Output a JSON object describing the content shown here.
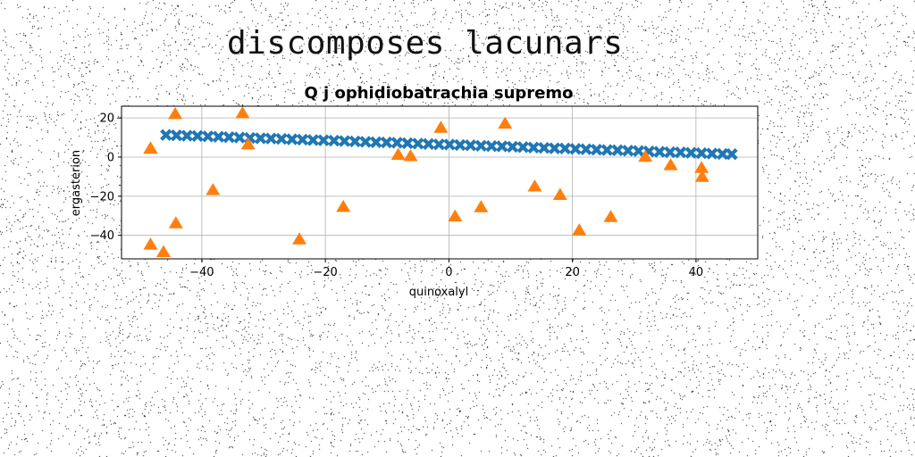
{
  "page": {
    "heading": "discomposes lacunars"
  },
  "chart_data": {
    "type": "scatter",
    "title": "Q j ophidiobatrachia supremo",
    "xlabel": "quinoxalyl",
    "ylabel": "ergasterion",
    "xlim": [
      -53,
      50
    ],
    "ylim": [
      -52,
      26
    ],
    "x_ticks": [
      -40,
      -20,
      0,
      20,
      40
    ],
    "x_tick_labels": [
      "−40",
      "−20",
      "0",
      "20",
      "40"
    ],
    "y_ticks": [
      -40,
      -20,
      0,
      20
    ],
    "y_tick_labels": [
      "−40",
      "−20",
      "0",
      "20"
    ],
    "grid": true,
    "series": [
      {
        "marker": "x",
        "color": "#1f77b4",
        "x": [
          -45.8,
          -44.1,
          -42.4,
          -40.7,
          -39.0,
          -37.3,
          -35.6,
          -33.9,
          -32.2,
          -30.5,
          -28.8,
          -27.1,
          -25.4,
          -23.7,
          -22.0,
          -20.3,
          -18.6,
          -16.9,
          -15.2,
          -13.5,
          -11.8,
          -10.1,
          -8.4,
          -6.7,
          -5.0,
          -3.3,
          -1.6,
          0.1,
          1.8,
          3.5,
          5.2,
          6.9,
          8.6,
          10.3,
          12.0,
          13.7,
          15.4,
          17.1,
          18.8,
          20.5,
          22.2,
          23.9,
          25.6,
          27.3,
          29.0,
          30.7,
          32.4,
          34.1,
          35.8,
          37.5,
          39.2,
          40.9,
          42.6,
          44.3,
          45.8
        ],
        "y": [
          11.3,
          11.1,
          10.9,
          10.8,
          10.6,
          10.4,
          10.2,
          10.0,
          9.8,
          9.6,
          9.5,
          9.3,
          9.1,
          8.9,
          8.7,
          8.6,
          8.4,
          8.2,
          8.0,
          7.8,
          7.6,
          7.5,
          7.3,
          7.1,
          6.9,
          6.7,
          6.5,
          6.4,
          6.2,
          6.0,
          5.8,
          5.6,
          5.5,
          5.3,
          5.1,
          4.9,
          4.7,
          4.5,
          4.4,
          4.2,
          4.0,
          3.8,
          3.6,
          3.5,
          3.3,
          3.1,
          2.9,
          2.7,
          2.5,
          2.4,
          2.2,
          2.0,
          1.8,
          1.6,
          1.5
        ]
      },
      {
        "marker": "^",
        "color": "#ff7f0e",
        "x": [
          -48.3,
          -44.3,
          -33.4,
          -32.5,
          -1.3,
          9.1,
          -48.3,
          -8.2,
          -6.2,
          31.8,
          35.9,
          40.9,
          41.0,
          -38.2,
          13.9,
          18.0,
          -17.1,
          5.2,
          1.0,
          26.2,
          -44.2,
          21.1,
          -48.3,
          -24.2,
          -46.2
        ],
        "y": [
          4.2,
          21.7,
          22.1,
          6.2,
          14.7,
          16.8,
          4.0,
          0.9,
          0.2,
          -0.1,
          -4.4,
          -5.8,
          -10.4,
          -17.1,
          -15.3,
          -19.6,
          -25.7,
          -25.9,
          -30.6,
          -30.9,
          -34.1,
          -37.7,
          -45.0,
          -42.3,
          -48.8
        ]
      }
    ]
  }
}
